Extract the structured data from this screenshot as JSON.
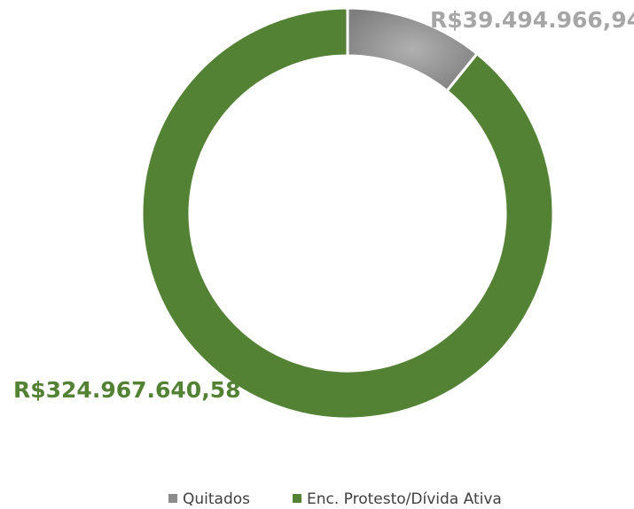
{
  "chart_data": {
    "type": "donut",
    "categories": [
      "Quitados",
      "Enc. Protesto/Dívida Ativa"
    ],
    "values": [
      39494966.94,
      324967640.58
    ],
    "value_labels": [
      "R$39.494.966,94",
      "R$324.967.640,58"
    ],
    "colors": [
      "#8c8c8c",
      "#548235"
    ],
    "label_colors": [
      "#a6a6a6",
      "#548235"
    ],
    "legend": "bottom"
  }
}
